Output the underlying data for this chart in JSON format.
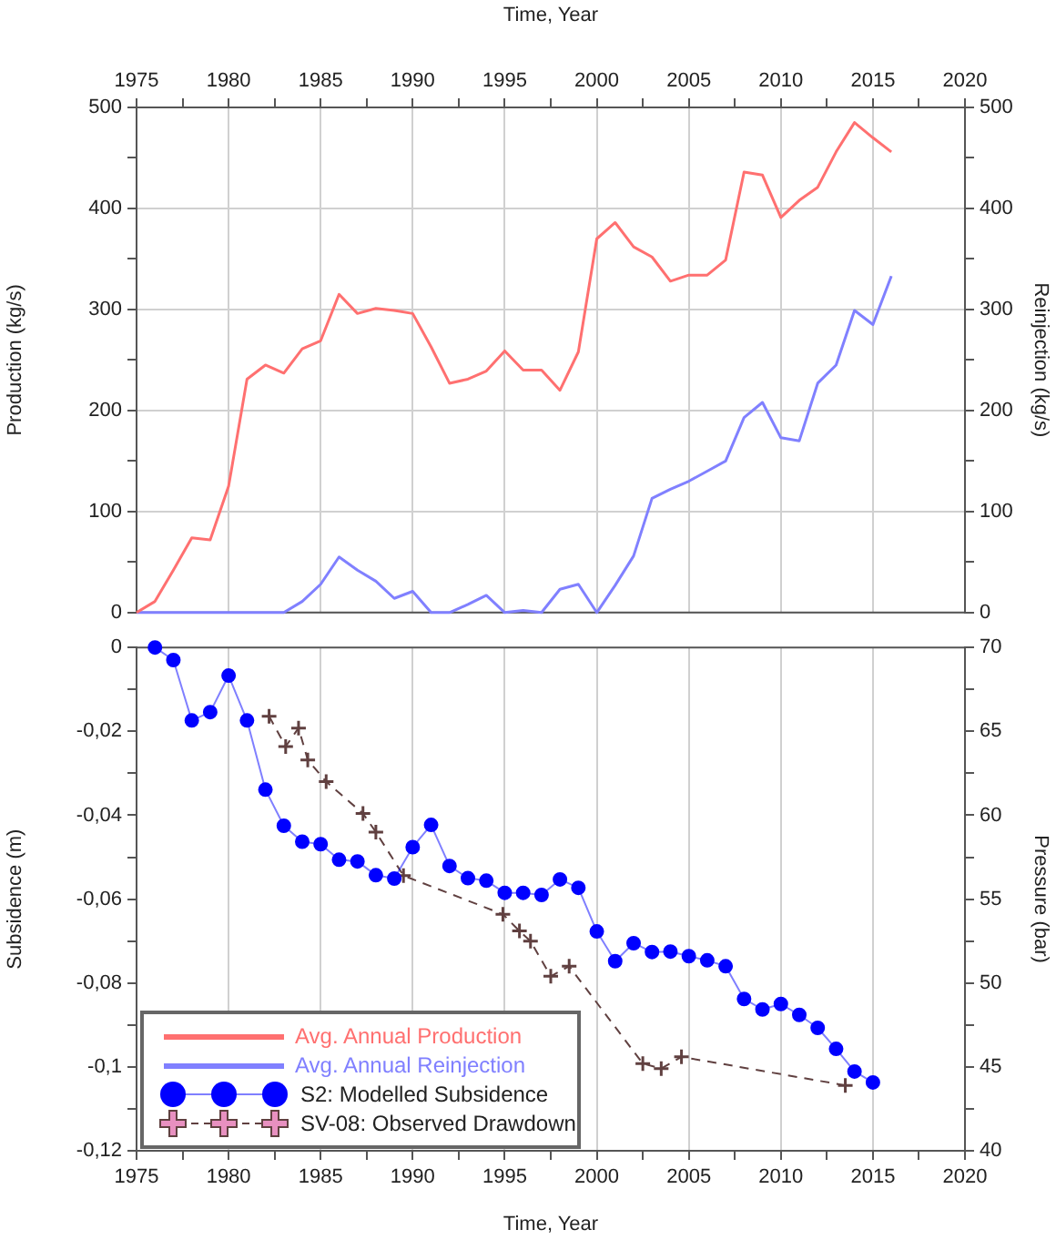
{
  "chart_data": [
    {
      "type": "line",
      "xlabel": "Time, Year",
      "ylabel": "Production (kg/s)",
      "y2label": "Reinjection (kg/s)",
      "xlim": [
        1975,
        2020
      ],
      "xticks": [
        1975,
        {
          "value": 1977.5,
          "label": null
        },
        1980,
        {
          "value": 1982.5,
          "label": null
        },
        1985,
        {
          "value": 1987.5,
          "label": null
        },
        1990,
        {
          "value": 1992.5,
          "label": null
        },
        1995,
        {
          "value": 1997.5,
          "label": null
        },
        2000,
        {
          "value": 2002.5,
          "label": null
        },
        2005,
        {
          "value": 2007.5,
          "label": null
        },
        2010,
        {
          "value": 2012.5,
          "label": null
        },
        2015,
        {
          "value": 2017.5,
          "label": null
        },
        2020
      ],
      "ylim": [
        0,
        500
      ],
      "yticks": [
        0,
        {
          "value": 50,
          "label": null
        },
        100,
        {
          "value": 150,
          "label": null
        },
        200,
        {
          "value": 250,
          "label": null
        },
        300,
        {
          "value": 350,
          "label": null
        },
        400,
        {
          "value": 450,
          "label": null
        },
        500
      ],
      "y2lim": [
        0,
        500
      ],
      "y2ticks": [
        0,
        {
          "value": 50,
          "label": null
        },
        100,
        {
          "value": 150,
          "label": null
        },
        200,
        {
          "value": 250,
          "label": null
        },
        300,
        {
          "value": 350,
          "label": null
        },
        400,
        {
          "value": 450,
          "label": null
        },
        500
      ],
      "grid": true,
      "legend": "bottom",
      "marker": "none",
      "line_style": "solid",
      "series": [
        {
          "name": "Avg. Annual Production",
          "color": "#ff7070",
          "x": [
            1975,
            1976,
            1977,
            1978,
            1979,
            1980,
            1981,
            1982,
            1983,
            1984,
            1985,
            1986,
            1987,
            1988,
            1989,
            1990,
            1991,
            1992,
            1993,
            1994,
            1995,
            1996,
            1997,
            1998,
            1999,
            2000,
            2001,
            2002,
            2003,
            2004,
            2005,
            2006,
            2007,
            2008,
            2009,
            2010,
            2011,
            2012,
            2013,
            2014,
            2015,
            2016
          ],
          "values": [
            0,
            11,
            42,
            74,
            72,
            125,
            231,
            245,
            237,
            261,
            269,
            315,
            296,
            301,
            299,
            296,
            263,
            227,
            231,
            239,
            259,
            240,
            240,
            220,
            258,
            370,
            386,
            362,
            352,
            328,
            334,
            334,
            349,
            436,
            433,
            391,
            408,
            421,
            456,
            485,
            470,
            456
          ]
        },
        {
          "name": "Avg. Annual Reinjection",
          "color": "#8080ff",
          "axis": "y2",
          "x": [
            1975,
            1976,
            1977,
            1978,
            1979,
            1980,
            1981,
            1982,
            1983,
            1984,
            1985,
            1986,
            1987,
            1988,
            1989,
            1990,
            1991,
            1992,
            1993,
            1994,
            1995,
            1996,
            1997,
            1998,
            1999,
            2000,
            2001,
            2002,
            2003,
            2004,
            2005,
            2006,
            2007,
            2008,
            2009,
            2010,
            2011,
            2012,
            2013,
            2014,
            2015,
            2016
          ],
          "values": [
            0,
            0,
            0,
            0,
            0,
            0,
            0,
            0,
            0,
            11,
            28,
            55,
            42,
            31,
            14,
            21,
            0,
            0,
            8,
            17,
            0,
            2,
            0,
            23,
            28,
            0,
            27,
            56,
            113,
            122,
            130,
            140,
            150,
            193,
            208,
            173,
            170,
            227,
            245,
            299,
            285,
            333
          ]
        }
      ]
    },
    {
      "type": "line",
      "xlabel": "Time, Year",
      "ylabel": "Subsidence (m)",
      "y2label": "Pressure (bar)",
      "xlim": [
        1975,
        2020
      ],
      "xticks": [
        1975,
        {
          "value": 1977.5,
          "label": null
        },
        1980,
        {
          "value": 1982.5,
          "label": null
        },
        1985,
        {
          "value": 1987.5,
          "label": null
        },
        1990,
        {
          "value": 1992.5,
          "label": null
        },
        1995,
        {
          "value": 1997.5,
          "label": null
        },
        2000,
        {
          "value": 2002.5,
          "label": null
        },
        2005,
        {
          "value": 2007.5,
          "label": null
        },
        2010,
        {
          "value": 2012.5,
          "label": null
        },
        2015,
        {
          "value": 2017.5,
          "label": null
        },
        2020
      ],
      "ylim": [
        -0.12,
        0
      ],
      "yticks": [
        {
          "value": -0.12,
          "label": "-0,12"
        },
        {
          "value": -0.11,
          "label": null
        },
        {
          "value": -0.1,
          "label": "-0,1"
        },
        {
          "value": -0.09,
          "label": null
        },
        {
          "value": -0.08,
          "label": "-0,08"
        },
        {
          "value": -0.07,
          "label": null
        },
        {
          "value": -0.06,
          "label": "-0,06"
        },
        {
          "value": -0.05,
          "label": null
        },
        {
          "value": -0.04,
          "label": "-0,04"
        },
        {
          "value": -0.03,
          "label": null
        },
        {
          "value": -0.02,
          "label": "-0,02"
        },
        {
          "value": -0.01,
          "label": null
        },
        0
      ],
      "y2lim": [
        40,
        70
      ],
      "y2ticks": [
        40,
        {
          "value": 42.5,
          "label": null
        },
        45,
        {
          "value": 47.5,
          "label": null
        },
        50,
        {
          "value": 52.5,
          "label": null
        },
        55,
        {
          "value": 57.5,
          "label": null
        },
        60,
        {
          "value": 62.5,
          "label": null
        },
        65,
        {
          "value": 67.5,
          "label": null
        },
        70
      ],
      "grid": "x",
      "legend": "bottom left",
      "series": [
        {
          "name": "S2: Modelled Subsidence",
          "color": "#0000ff",
          "marker": "circle",
          "line_style": "solid",
          "x": [
            1976,
            1977,
            1978,
            1979,
            1980,
            1981,
            1982,
            1983,
            1984,
            1985,
            1986,
            1987,
            1988,
            1989,
            1990,
            1991,
            1992,
            1993,
            1994,
            1995,
            1996,
            1997,
            1998,
            1999,
            2000,
            2001,
            2002,
            2003,
            2004,
            2005,
            2006,
            2007,
            2008,
            2009,
            2010,
            2011,
            2012,
            2013,
            2014,
            2015
          ],
          "values": [
            0,
            -0.003,
            -0.0174,
            -0.0154,
            -0.0067,
            -0.0174,
            -0.0339,
            -0.0425,
            -0.0463,
            -0.0469,
            -0.0506,
            -0.051,
            -0.0543,
            -0.0551,
            -0.0476,
            -0.0423,
            -0.0521,
            -0.055,
            -0.0556,
            -0.0585,
            -0.0585,
            -0.059,
            -0.0553,
            -0.0573,
            -0.0677,
            -0.0748,
            -0.0705,
            -0.0726,
            -0.0725,
            -0.0736,
            -0.0746,
            -0.076,
            -0.0838,
            -0.0863,
            -0.085,
            -0.0876,
            -0.0907,
            -0.0957,
            -0.1011,
            -0.1037
          ]
        },
        {
          "name": "SV-08: Observed Drawdown",
          "color": "#604040",
          "axis": "y2",
          "marker": "cross",
          "line_style": "dashed",
          "x": [
            1982.2,
            1983.1,
            1983.8,
            1984.3,
            1985.3,
            1987.3,
            1988.0,
            1989.5,
            1994.9,
            1995.8,
            1996.4,
            1997.5,
            1998.5,
            2002.5,
            2003.5,
            2004.6,
            2013.5
          ],
          "values": [
            65.9,
            64.1,
            65.2,
            63.3,
            62.0,
            60.1,
            59.0,
            56.4,
            54.1,
            53.1,
            52.5,
            50.4,
            51.0,
            45.2,
            44.9,
            45.6,
            43.9
          ]
        }
      ]
    }
  ]
}
